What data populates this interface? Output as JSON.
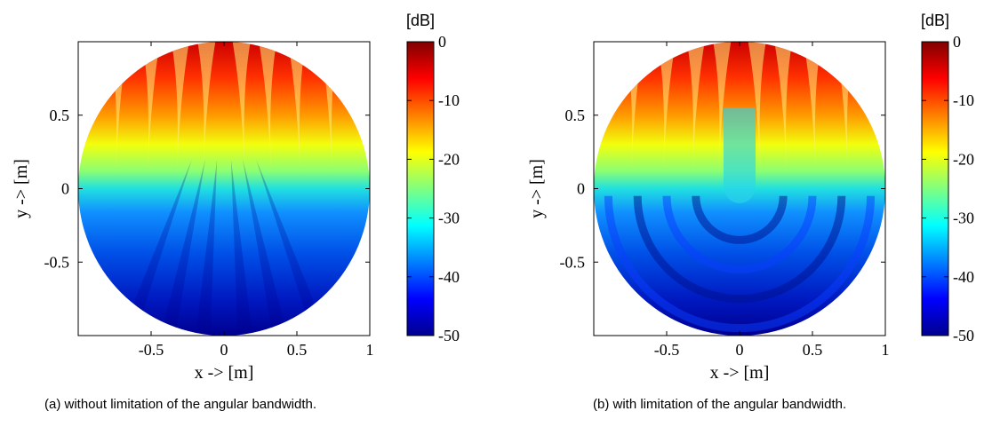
{
  "chart_data": [
    {
      "type": "heatmap",
      "caption": "(a) without limitation of the angular bandwidth.",
      "xlabel": "x -> [m]",
      "ylabel": "y -> [m]",
      "xlim": [
        -1,
        1
      ],
      "ylim": [
        -1,
        1
      ],
      "x_ticks": [
        "-0.5",
        "0",
        "0.5",
        "1"
      ],
      "x_tick_values": [
        -0.5,
        0,
        0.5,
        1
      ],
      "y_ticks": [
        "0.5",
        "0",
        "-0.5"
      ],
      "y_tick_values": [
        0.5,
        0,
        -0.5
      ],
      "region": "circle of radius 1 m",
      "pattern": "interference fringes emanating from the top edge; radial streaks converge toward the bottom",
      "colorbar": {
        "unit": "[dB]",
        "range": [
          -50,
          0
        ],
        "ticks": [
          "0",
          "-10",
          "-20",
          "-30",
          "-40",
          "-50"
        ],
        "tick_values": [
          0,
          -10,
          -20,
          -30,
          -40,
          -50
        ],
        "colormap": "jet"
      }
    },
    {
      "type": "heatmap",
      "caption": "(b) with limitation of the angular bandwidth.",
      "xlabel": "x -> [m]",
      "ylabel": "y -> [m]",
      "xlim": [
        -1,
        1
      ],
      "ylim": [
        -1,
        1
      ],
      "x_ticks": [
        "-0.5",
        "0",
        "0.5",
        "1"
      ],
      "x_tick_values": [
        -0.5,
        0,
        0.5,
        1
      ],
      "y_ticks": [
        "0.5",
        "0",
        "-0.5"
      ],
      "y_tick_values": [
        0.5,
        0,
        -0.5
      ],
      "region": "circle of radius 1 m",
      "pattern": "interference fringes from the top edge; concentric arcs around the centre in the lower half",
      "colorbar": {
        "unit": "[dB]",
        "range": [
          -50,
          0
        ],
        "ticks": [
          "0",
          "-10",
          "-20",
          "-30",
          "-40",
          "-50"
        ],
        "tick_values": [
          0,
          -10,
          -20,
          -30,
          -40,
          -50
        ],
        "colormap": "jet"
      }
    }
  ]
}
